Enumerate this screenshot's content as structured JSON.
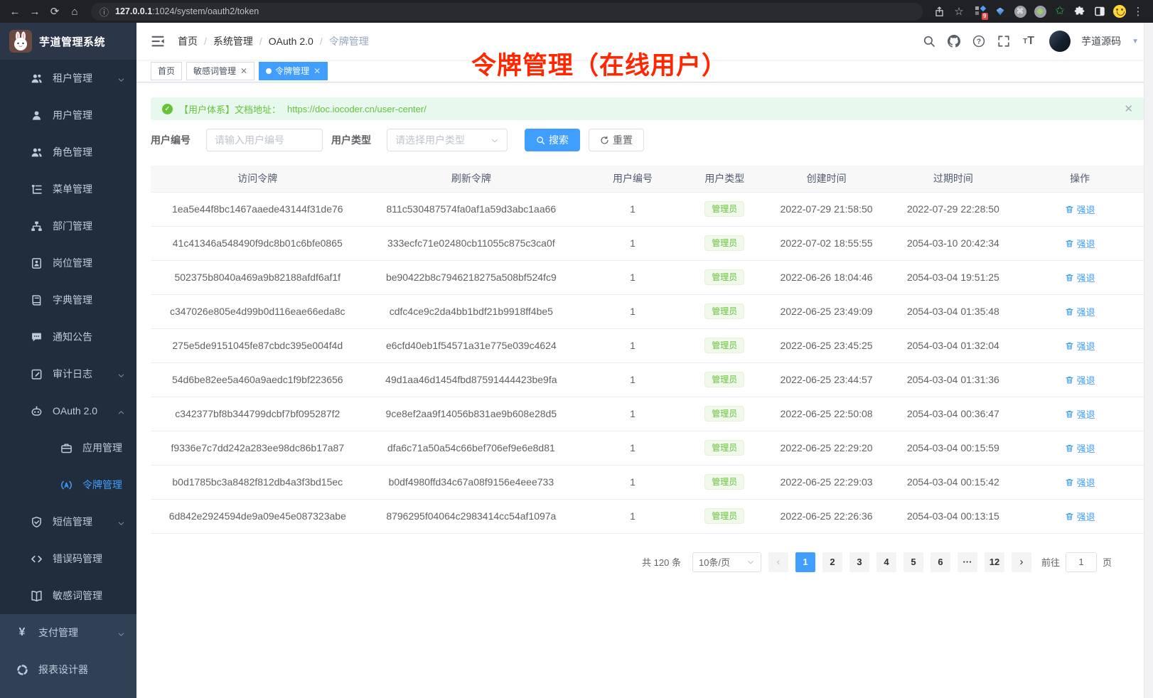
{
  "colors": {
    "primary": "#409eff",
    "success": "#67c23a",
    "annotation": "#ff2600"
  },
  "browser": {
    "url_host": "127.0.0.1",
    "url_path": ":1024/system/oauth2/token",
    "ext_badge": "9"
  },
  "sidebar": {
    "logo_title": "芋道管理系统",
    "groups": [
      {
        "style": "submenu",
        "items": [
          {
            "label": "租户管理",
            "icon": "tenant-icon",
            "level": 1,
            "chevron": "down"
          },
          {
            "label": "用户管理",
            "icon": "user-icon",
            "level": 1
          },
          {
            "label": "角色管理",
            "icon": "role-icon",
            "level": 1
          },
          {
            "label": "菜单管理",
            "icon": "menu-tree-icon",
            "level": 1
          },
          {
            "label": "部门管理",
            "icon": "org-icon",
            "level": 1
          },
          {
            "label": "岗位管理",
            "icon": "post-icon",
            "level": 1
          },
          {
            "label": "字典管理",
            "icon": "dict-icon",
            "level": 1
          },
          {
            "label": "通知公告",
            "icon": "notice-icon",
            "level": 1
          },
          {
            "label": "审计日志",
            "icon": "log-icon",
            "level": 1,
            "chevron": "down"
          },
          {
            "label": "OAuth 2.0",
            "icon": "oauth-icon",
            "level": 1,
            "chevron": "up"
          },
          {
            "label": "应用管理",
            "icon": "app-icon",
            "level": 2
          },
          {
            "label": "令牌管理",
            "icon": "token-icon",
            "level": 2,
            "active": true
          },
          {
            "label": "短信管理",
            "icon": "sms-icon",
            "level": 1,
            "chevron": "down"
          },
          {
            "label": "错误码管理",
            "icon": "errcode-icon",
            "level": 1
          },
          {
            "label": "敏感词管理",
            "icon": "sensitive-icon",
            "level": 1
          }
        ]
      },
      {
        "style": "root",
        "items": [
          {
            "label": "支付管理",
            "icon": "pay-icon",
            "level": 0,
            "chevron": "down"
          },
          {
            "label": "报表设计器",
            "icon": "report-icon",
            "level": 0
          }
        ]
      }
    ]
  },
  "header": {
    "breadcrumb": [
      "首页",
      "系统管理",
      "OAuth 2.0",
      "令牌管理"
    ],
    "username": "芋道源码"
  },
  "tabs": [
    {
      "label": "首页",
      "closable": false,
      "active": false
    },
    {
      "label": "敏感词管理",
      "closable": true,
      "active": false
    },
    {
      "label": "令牌管理",
      "closable": true,
      "active": true
    }
  ],
  "annotation": {
    "text": "令牌管理（在线用户）"
  },
  "alert": {
    "prefix": "【用户体系】文档地址：",
    "link": "https://doc.iocoder.cn/user-center/"
  },
  "filters": {
    "user_id_label": "用户编号",
    "user_id_placeholder": "请输入用户编号",
    "user_type_label": "用户类型",
    "user_type_placeholder": "请选择用户类型",
    "search_label": "搜索",
    "reset_label": "重置"
  },
  "table": {
    "columns": [
      "访问令牌",
      "刷新令牌",
      "用户编号",
      "用户类型",
      "创建时间",
      "过期时间",
      "操作"
    ],
    "action_label": "强退",
    "rows": [
      {
        "access": "1ea5e44f8bc1467aaede43144f31de76",
        "refresh": "811c530487574fa0af1a59d3abc1aa66",
        "user_id": "1",
        "user_type": "管理员",
        "created": "2022-07-29 21:58:50",
        "expires": "2022-07-29 22:28:50"
      },
      {
        "access": "41c41346a548490f9dc8b01c6bfe0865",
        "refresh": "333ecfc71e02480cb11055c875c3ca0f",
        "user_id": "1",
        "user_type": "管理员",
        "created": "2022-07-02 18:55:55",
        "expires": "2054-03-10 20:42:34"
      },
      {
        "access": "502375b8040a469a9b82188afdf6af1f",
        "refresh": "be90422b8c7946218275a508bf524fc9",
        "user_id": "1",
        "user_type": "管理员",
        "created": "2022-06-26 18:04:46",
        "expires": "2054-03-04 19:51:25"
      },
      {
        "access": "c347026e805e4d99b0d116eae66eda8c",
        "refresh": "cdfc4ce9c2da4bb1bdf21b9918ff4be5",
        "user_id": "1",
        "user_type": "管理员",
        "created": "2022-06-25 23:49:09",
        "expires": "2054-03-04 01:35:48"
      },
      {
        "access": "275e5de9151045fe87cbdc395e004f4d",
        "refresh": "e6cfd40eb1f54571a31e775e039c4624",
        "user_id": "1",
        "user_type": "管理员",
        "created": "2022-06-25 23:45:25",
        "expires": "2054-03-04 01:32:04"
      },
      {
        "access": "54d6be82ee5a460a9aedc1f9bf223656",
        "refresh": "49d1aa46d1454fbd87591444423be9fa",
        "user_id": "1",
        "user_type": "管理员",
        "created": "2022-06-25 23:44:57",
        "expires": "2054-03-04 01:31:36"
      },
      {
        "access": "c342377bf8b344799dcbf7bf095287f2",
        "refresh": "9ce8ef2aa9f14056b831ae9b608e28d5",
        "user_id": "1",
        "user_type": "管理员",
        "created": "2022-06-25 22:50:08",
        "expires": "2054-03-04 00:36:47"
      },
      {
        "access": "f9336e7c7dd242a283ee98dc86b17a87",
        "refresh": "dfa6c71a50a54c66bef706ef9e6e8d81",
        "user_id": "1",
        "user_type": "管理员",
        "created": "2022-06-25 22:29:20",
        "expires": "2054-03-04 00:15:59"
      },
      {
        "access": "b0d1785bc3a8482f812db4a3f3bd15ec",
        "refresh": "b0df4980ffd34c67a08f9156e4eee733",
        "user_id": "1",
        "user_type": "管理员",
        "created": "2022-06-25 22:29:03",
        "expires": "2054-03-04 00:15:42"
      },
      {
        "access": "6d842e2924594de9a09e45e087323abe",
        "refresh": "8796295f04064c2983414cc54af1097a",
        "user_id": "1",
        "user_type": "管理员",
        "created": "2022-06-25 22:26:36",
        "expires": "2054-03-04 00:13:15"
      }
    ]
  },
  "pagination": {
    "total": "共 120 条",
    "page_size": "10条/页",
    "pages": [
      "1",
      "2",
      "3",
      "4",
      "5",
      "6",
      "...",
      "12"
    ],
    "active_page": "1",
    "goto_label": "前往",
    "goto_value": "1",
    "unit_label": "页"
  }
}
